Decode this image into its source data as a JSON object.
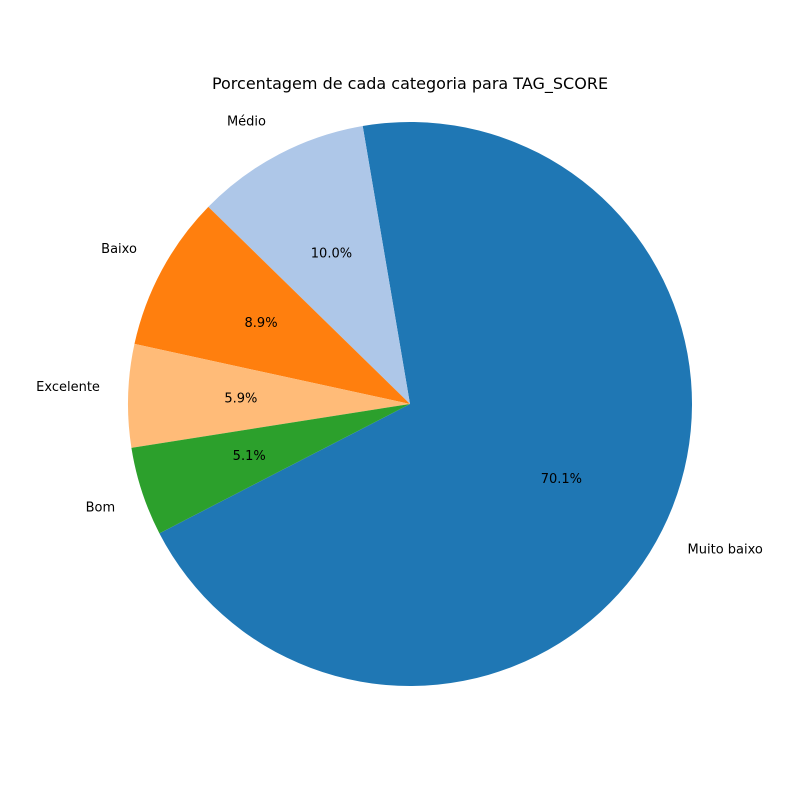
{
  "chart_data": {
    "type": "pie",
    "title": "Porcentagem de cada categoria para TAG_SCORE",
    "autopct_format": "{:.1f}%",
    "slices": [
      {
        "label": "Muito baixo",
        "percent": 70.1,
        "pct_label": "70.1%",
        "color": "#1f77b4"
      },
      {
        "label": "Médio",
        "percent": 10.0,
        "pct_label": "10.0%",
        "color": "#aec7e8"
      },
      {
        "label": "Baixo",
        "percent": 8.9,
        "pct_label": "8.9%",
        "color": "#ff7f0e"
      },
      {
        "label": "Excelente",
        "percent": 5.9,
        "pct_label": "5.9%",
        "color": "#ffbb78"
      },
      {
        "label": "Bom",
        "percent": 5.1,
        "pct_label": "5.1%",
        "color": "#2ca02c"
      }
    ]
  }
}
